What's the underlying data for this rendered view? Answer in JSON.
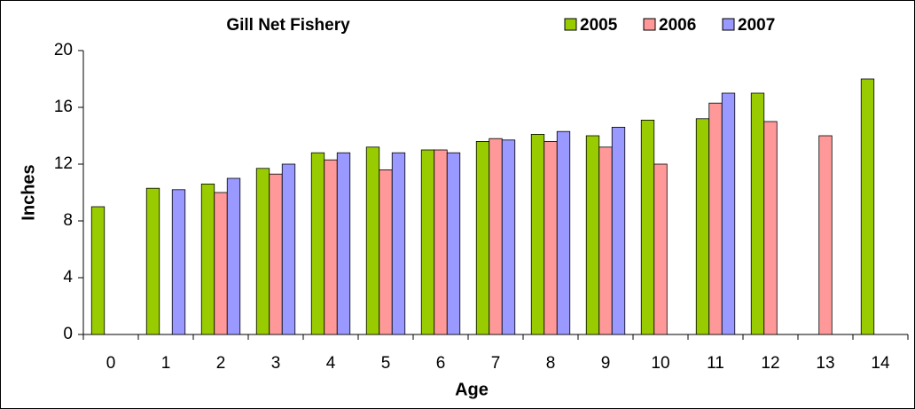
{
  "chart_data": {
    "type": "bar",
    "title": "Gill Net Fishery",
    "x_label": "Age",
    "y_label": "Inches",
    "categories": [
      "0",
      "1",
      "2",
      "3",
      "4",
      "5",
      "6",
      "7",
      "8",
      "9",
      "10",
      "11",
      "12",
      "13",
      "14"
    ],
    "series": [
      {
        "name": "2005",
        "color": "#99cc00",
        "values": [
          9,
          10.3,
          10.6,
          11.7,
          12.8,
          13.2,
          13,
          13.6,
          14.1,
          14,
          15.1,
          15.2,
          17,
          null,
          18
        ]
      },
      {
        "name": "2006",
        "color": "#ff9999",
        "values": [
          null,
          null,
          10,
          11.3,
          12.3,
          11.6,
          13,
          13.8,
          13.6,
          13.2,
          12,
          16.3,
          15,
          14,
          null
        ]
      },
      {
        "name": "2007",
        "color": "#9999ff",
        "values": [
          null,
          10.2,
          11,
          12,
          12.8,
          12.8,
          12.8,
          13.7,
          14.3,
          14.6,
          null,
          17,
          null,
          null,
          null
        ]
      }
    ],
    "ylim": [
      0,
      20
    ],
    "yticks": [
      0,
      4,
      8,
      12,
      16,
      20
    ],
    "grid": false,
    "legend": "top-right"
  }
}
